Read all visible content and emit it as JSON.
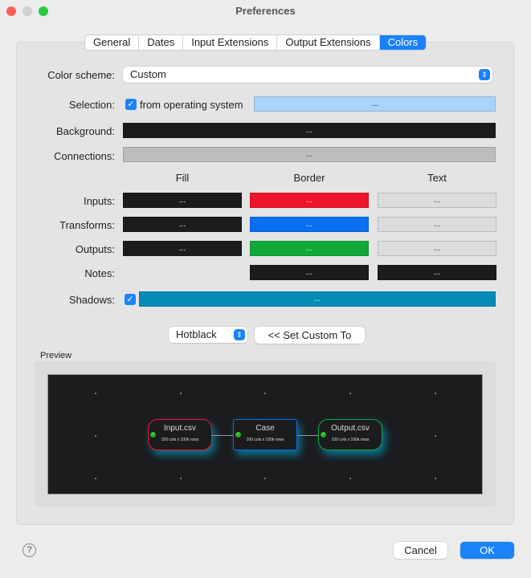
{
  "window": {
    "title": "Preferences"
  },
  "tabs": [
    {
      "label": "General"
    },
    {
      "label": "Dates"
    },
    {
      "label": "Input Extensions"
    },
    {
      "label": "Output Extensions"
    },
    {
      "label": "Colors"
    }
  ],
  "form": {
    "color_scheme_label": "Color scheme:",
    "color_scheme_value": "Custom",
    "selection_label": "Selection:",
    "selection_checkbox": "from operating system",
    "selection_checked": true,
    "selection_color": "#a9d4fa",
    "background_label": "Background:",
    "background_color": "#1b1c1e",
    "connections_label": "Connections:",
    "connections_color": "#bdbdbd",
    "col_fill": "Fill",
    "col_border": "Border",
    "col_text": "Text",
    "rows": [
      {
        "label": "Inputs:",
        "fill": "#1b1c1e",
        "border": "#f0142a",
        "text": "#dcdcdc"
      },
      {
        "label": "Transforms:",
        "fill": "#1b1c1e",
        "border": "#0a6ff0",
        "text": "#dcdcdc"
      },
      {
        "label": "Outputs:",
        "fill": "#1b1c1e",
        "border": "#11a83a",
        "text": "#dcdcdc"
      },
      {
        "label": "Notes:",
        "border": "#1b1c1e",
        "text": "#1b1c1e"
      }
    ],
    "shadows_label": "Shadows:",
    "shadows_checked": true,
    "shadows_color": "#078cb8",
    "swatch_label": "...",
    "preset_value": "Hotblack",
    "set_custom_label": "<< Set Custom To"
  },
  "preview": {
    "label": "Preview",
    "nodes": [
      {
        "name": "Input.csv",
        "info": "100 cols x 100k rows"
      },
      {
        "name": "Case",
        "info": "100 cols x 100k rows"
      },
      {
        "name": "Output.csv",
        "info": "100 cols x 100k rows"
      }
    ]
  },
  "footer": {
    "help": "?",
    "cancel": "Cancel",
    "ok": "OK"
  }
}
